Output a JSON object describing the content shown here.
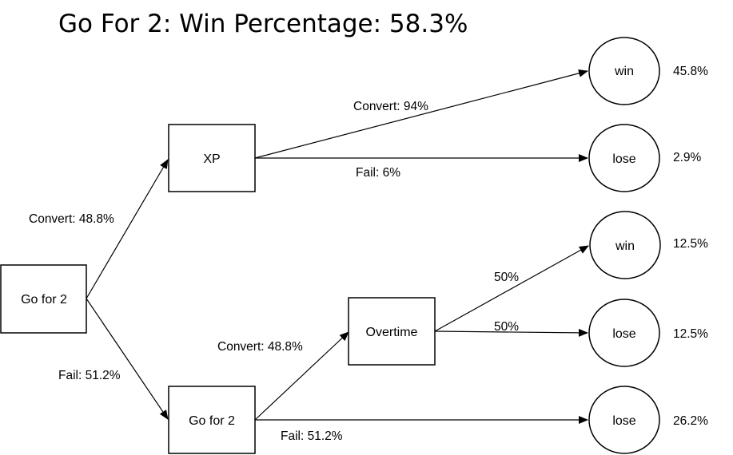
{
  "title": "Go For 2: Win Percentage: 58.3%",
  "nodes": {
    "root": "Go for 2",
    "xp": "XP",
    "go2": "Go for 2",
    "overtime": "Overtime",
    "win1": "win",
    "lose1": "lose",
    "win2": "win",
    "lose2": "lose",
    "lose3": "lose"
  },
  "edges": {
    "root_xp": "Convert: 48.8%",
    "root_go2": "Fail: 51.2%",
    "xp_win": "Convert: 94%",
    "xp_lose": "Fail: 6%",
    "go2_overtime": "Convert: 48.8%",
    "go2_lose": "Fail: 51.2%",
    "ot_win": "50%",
    "ot_lose": "50%"
  },
  "outcomes": {
    "win1": "45.8%",
    "lose1": "2.9%",
    "win2": "12.5%",
    "lose2": "12.5%",
    "lose3": "26.2%"
  },
  "colors": {
    "stroke": "#000000",
    "background": "#ffffff"
  }
}
